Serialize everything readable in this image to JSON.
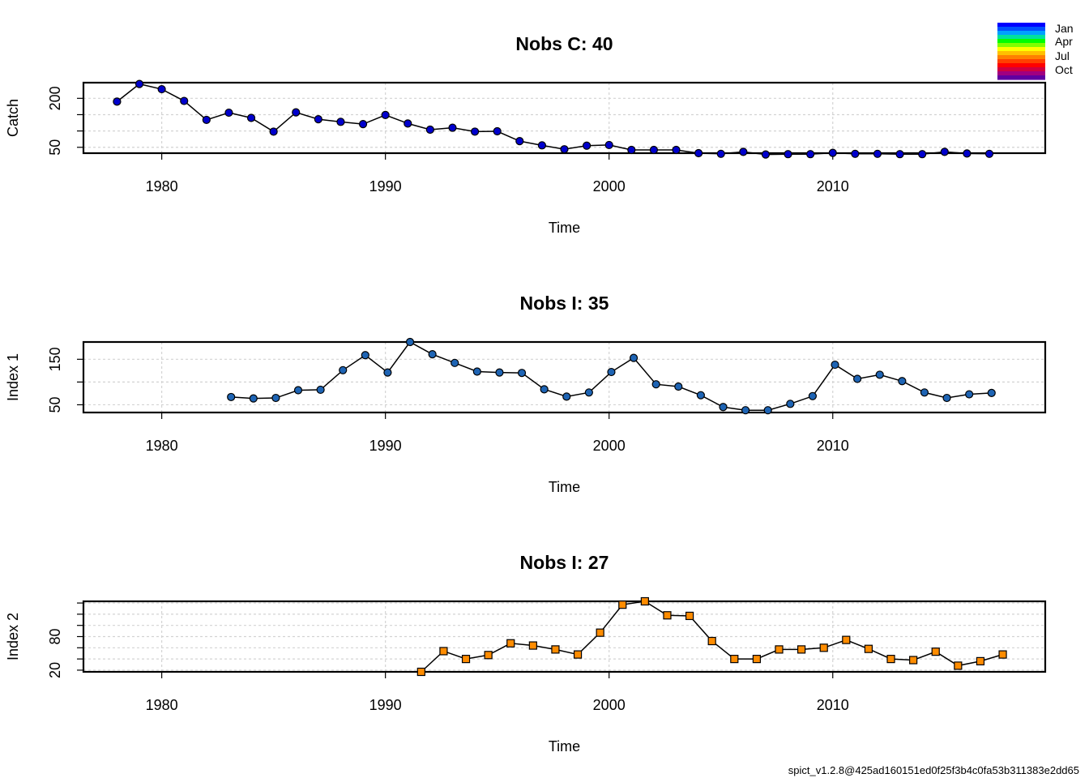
{
  "colors": {
    "catch_points": "#0000CD",
    "index1_points": "#1E64B4",
    "index2_points": "#FF8C00",
    "grid": "#d3d3d3",
    "season_ramp": [
      "#0000FF",
      "#0050FF",
      "#00A0FF",
      "#00E0A0",
      "#00FF00",
      "#80FF00",
      "#FFFF00",
      "#FFC000",
      "#FF8000",
      "#FF4000",
      "#FF0000",
      "#D00040",
      "#A00080",
      "#6000A0"
    ]
  },
  "legend": {
    "labels": [
      "Jan",
      "Apr",
      "Jul",
      "Oct"
    ]
  },
  "footer": "spict_v1.2.8@425ad160151ed0f25f3b4c0fa53b311383e2dd65",
  "chart_data": [
    {
      "type": "line",
      "title": "Nobs C: 40",
      "xlabel": "Time",
      "ylabel": "Catch",
      "xlim": [
        1976.5,
        2019.5
      ],
      "ylim": [
        32,
        248
      ],
      "xticks": [
        1980,
        1990,
        2000,
        2010
      ],
      "yticks": [
        50,
        200
      ],
      "grid_y": [
        50,
        100,
        150,
        200,
        250
      ],
      "grid": true,
      "marker": "circle",
      "series": [
        {
          "x": [
            1978,
            1979,
            1980,
            1981,
            1982,
            1983,
            1984,
            1985,
            1986,
            1987,
            1988,
            1989,
            1990,
            1991,
            1992,
            1993,
            1994,
            1995,
            1996,
            1997,
            1998,
            1999,
            2000,
            2001,
            2002,
            2003,
            2004,
            2005,
            2006,
            2007,
            2008,
            2009,
            2010,
            2011,
            2012,
            2013,
            2014,
            2015,
            2016,
            2017
          ],
          "y": [
            190,
            244,
            228,
            192,
            134,
            156,
            140,
            98,
            157,
            136,
            128,
            121,
            149,
            123,
            104,
            110,
            98,
            99,
            69,
            56,
            44,
            55,
            57,
            42,
            42,
            42,
            32,
            30,
            36,
            28,
            29,
            29,
            33,
            30,
            30,
            29,
            29,
            36,
            31,
            30
          ]
        }
      ]
    },
    {
      "type": "line",
      "title": "Nobs I: 35",
      "xlabel": "Time",
      "ylabel": "Index 1",
      "xlim": [
        1976.5,
        2019.5
      ],
      "ylim": [
        33,
        188
      ],
      "xticks": [
        1980,
        1990,
        2000,
        2010
      ],
      "yticks": [
        50,
        150
      ],
      "grid_y": [
        50,
        100,
        150
      ],
      "grid": true,
      "marker": "circle",
      "series": [
        {
          "x": [
            1983.1,
            1984.1,
            1985.1,
            1986.1,
            1987.1,
            1988.1,
            1989.1,
            1990.1,
            1991.1,
            1992.1,
            1993.1,
            1994.1,
            1995.1,
            1996.1,
            1997.1,
            1998.1,
            1999.1,
            2000.1,
            2001.1,
            2002.1,
            2003.1,
            2004.1,
            2005.1,
            2006.1,
            2007.1,
            2008.1,
            2009.1,
            2010.1,
            2011.1,
            2012.1,
            2013.1,
            2014.1,
            2015.1,
            2016.1,
            2017.1
          ],
          "y": [
            67,
            64,
            65,
            82,
            83,
            126,
            159,
            121,
            188,
            161,
            142,
            123,
            121,
            120,
            84,
            68,
            77,
            122,
            153,
            95,
            90,
            71,
            45,
            38,
            38,
            52,
            69,
            138,
            107,
            116,
            102,
            77,
            65,
            73,
            76
          ]
        }
      ]
    },
    {
      "type": "line",
      "title": "Nobs I: 27",
      "xlabel": "Time",
      "ylabel": "Index 2",
      "xlim": [
        1976.5,
        2019.5
      ],
      "ylim": [
        17,
        143
      ],
      "xticks": [
        1980,
        1990,
        2000,
        2010
      ],
      "yticks": [
        20,
        80
      ],
      "grid_y": [
        20,
        40,
        60,
        80,
        100,
        120,
        140
      ],
      "grid": true,
      "marker": "square",
      "series": [
        {
          "x": [
            1991.6,
            1992.6,
            1993.6,
            1994.6,
            1995.6,
            1996.6,
            1997.6,
            1998.6,
            1999.6,
            2000.6,
            2001.6,
            2002.6,
            2003.6,
            2004.6,
            2005.6,
            2006.6,
            2007.6,
            2008.6,
            2009.6,
            2010.6,
            2011.6,
            2012.6,
            2013.6,
            2014.6,
            2015.6,
            2016.6,
            2017.6
          ],
          "y": [
            17,
            54,
            40,
            47,
            68,
            64,
            57,
            48,
            87,
            137,
            143,
            118,
            117,
            72,
            40,
            40,
            57,
            57,
            60,
            74,
            58,
            40,
            38,
            53,
            28,
            36,
            48
          ]
        }
      ]
    }
  ]
}
